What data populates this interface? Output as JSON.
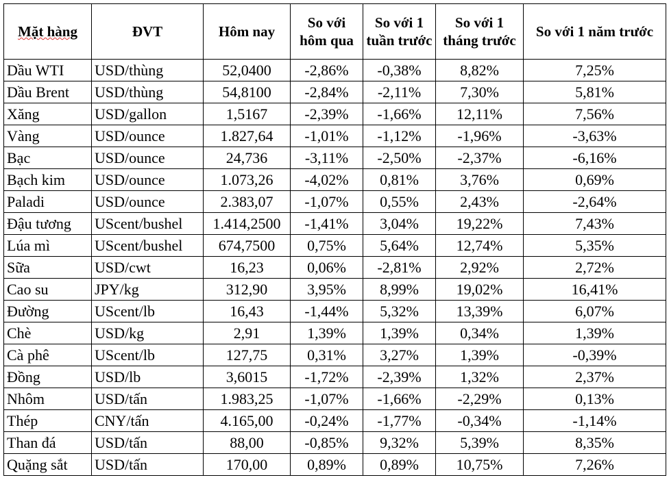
{
  "table": {
    "headers": [
      "Mặt hàng",
      "ĐVT",
      "Hôm nay",
      "So với hôm qua",
      "So với 1 tuần trước",
      "So với 1 tháng trước",
      "So với 1 năm trước"
    ],
    "rows": [
      {
        "name": "Dầu WTI",
        "unit": "USD/thùng",
        "today": "52,0400",
        "d1": "-2,86%",
        "w1": "-0,38%",
        "m1": "8,82%",
        "y1": "7,25%"
      },
      {
        "name": "Dầu Brent",
        "unit": "USD/thùng",
        "today": "54,8100",
        "d1": "-2,84%",
        "w1": "-2,11%",
        "m1": "7,30%",
        "y1": "5,81%"
      },
      {
        "name": "Xăng",
        "unit": "USD/gallon",
        "today": "1,5167",
        "d1": "-2,39%",
        "w1": "-1,66%",
        "m1": "12,11%",
        "y1": "7,56%"
      },
      {
        "name": "Vàng",
        "unit": "USD/ounce",
        "today": "1.827,64",
        "d1": "-1,01%",
        "w1": "-1,12%",
        "m1": "-1,96%",
        "y1": "-3,63%"
      },
      {
        "name": "Bạc",
        "unit": "USD/ounce",
        "today": "24,736",
        "d1": "-3,11%",
        "w1": "-2,50%",
        "m1": "-2,37%",
        "y1": "-6,16%"
      },
      {
        "name": "Bạch kim",
        "unit": "USD/ounce",
        "today": "1.073,26",
        "d1": "-4,02%",
        "w1": "0,81%",
        "m1": "3,76%",
        "y1": "0,69%"
      },
      {
        "name": "Paladi",
        "unit": "USD/ounce",
        "today": "2.383,07",
        "d1": "-1,07%",
        "w1": "0,55%",
        "m1": "2,43%",
        "y1": "-2,64%"
      },
      {
        "name": "Đậu tương",
        "unit": "UScent/bushel",
        "today": "1.414,2500",
        "d1": "-1,41%",
        "w1": "3,04%",
        "m1": "19,22%",
        "y1": "7,43%"
      },
      {
        "name": "Lúa mì",
        "unit": "UScent/bushel",
        "today": "674,7500",
        "d1": "0,75%",
        "w1": "5,64%",
        "m1": "12,74%",
        "y1": "5,35%"
      },
      {
        "name": "Sữa",
        "unit": "USD/cwt",
        "today": "16,23",
        "d1": "0,06%",
        "w1": "-2,81%",
        "m1": "2,92%",
        "y1": "2,72%"
      },
      {
        "name": "Cao su",
        "unit": "JPY/kg",
        "today": "312,90",
        "d1": "3,95%",
        "w1": "8,99%",
        "m1": "19,02%",
        "y1": "16,41%"
      },
      {
        "name": "Đường",
        "unit": "UScent/lb",
        "today": "16,43",
        "d1": "-1,44%",
        "w1": "5,32%",
        "m1": "13,39%",
        "y1": "6,07%"
      },
      {
        "name": "Chè",
        "unit": "USD/kg",
        "today": "2,91",
        "d1": "1,39%",
        "w1": "1,39%",
        "m1": "0,34%",
        "y1": "1,39%"
      },
      {
        "name": "Cà phê",
        "unit": "UScent/lb",
        "today": "127,75",
        "d1": "0,31%",
        "w1": "3,27%",
        "m1": "1,39%",
        "y1": "-0,39%"
      },
      {
        "name": "Đồng",
        "unit": "USD/lb",
        "today": "3,6015",
        "d1": "-1,72%",
        "w1": "-2,39%",
        "m1": "1,32%",
        "y1": "2,37%"
      },
      {
        "name": "Nhôm",
        "unit": "USD/tấn",
        "today": "1.983,25",
        "d1": "-1,07%",
        "w1": "-1,66%",
        "m1": "-2,29%",
        "y1": "0,13%"
      },
      {
        "name": "Thép",
        "unit": "CNY/tấn",
        "today": "4.165,00",
        "d1": "-0,24%",
        "w1": "-1,77%",
        "m1": "-0,34%",
        "y1": "-1,14%"
      },
      {
        "name": "Than đá",
        "unit": "USD/tấn",
        "today": "88,00",
        "d1": "-0,85%",
        "w1": "9,32%",
        "m1": "5,39%",
        "y1": "8,35%"
      },
      {
        "name": "Quặng sắt",
        "unit": "USD/tấn",
        "today": "170,00",
        "d1": "0,89%",
        "w1": "0,89%",
        "m1": "10,75%",
        "y1": "7,26%"
      }
    ]
  }
}
